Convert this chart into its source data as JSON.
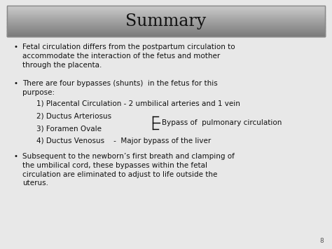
{
  "title": "Summary",
  "background_color": "#e8e8e8",
  "title_color": "#111111",
  "text_color": "#111111",
  "slide_number": "8",
  "bullet1": "Fetal circulation differs from the postpartum circulation to\naccommodate the interaction of the fetus and mother\nthrough the placenta.",
  "bullet2": "There are four bypasses (shunts)  in the fetus for this\npurpose:",
  "item1": "1) Placental Circulation - 2 umbilical arteries and 1 vein",
  "item2": "2) Ductus Arteriosus",
  "item3": "3) Foramen Ovale",
  "item4": "4) Ductus Venosus    -  Major bypass of the liver",
  "bracket_label": "Bypass of  pulmonary circulation",
  "bullet3": "Subsequent to the newborn’s first breath and clamping of\nthe umbilical cord, these bypasses within the fetal\ncirculation are eliminated to adjust to life outside the\nuterus.",
  "fig_width": 4.74,
  "fig_height": 3.55,
  "dpi": 100
}
